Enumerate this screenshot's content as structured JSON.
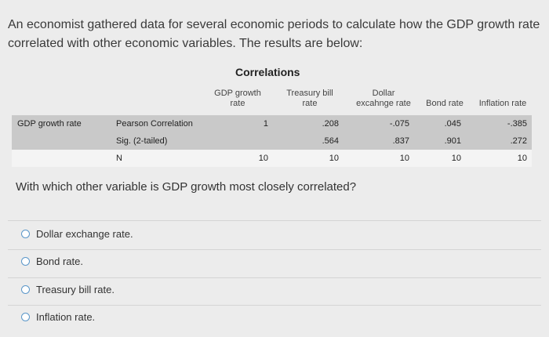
{
  "intro": "An economist gathered data for several economic periods to calculate how the GDP growth rate correlated with other economic variables. The results are below:",
  "table": {
    "title": "Correlations",
    "columns": [
      "GDP growth rate",
      "Treasury bill rate",
      "Dollar excahnge rate",
      "Bond rate",
      "Inflation rate"
    ],
    "row_label": "GDP growth rate",
    "rows": [
      {
        "stat": "Pearson Correlation",
        "values": [
          "1",
          ".208",
          "-.075",
          ".045",
          "-.385"
        ]
      },
      {
        "stat": "Sig. (2-tailed)",
        "values": [
          "",
          ".564",
          ".837",
          ".901",
          ".272"
        ]
      },
      {
        "stat": "N",
        "values": [
          "10",
          "10",
          "10",
          "10",
          "10"
        ]
      }
    ]
  },
  "question": "With which other variable is GDP growth most closely correlated?",
  "options": [
    "Dollar exchange rate.",
    "Bond rate.",
    "Treasury bill rate.",
    "Inflation rate."
  ]
}
